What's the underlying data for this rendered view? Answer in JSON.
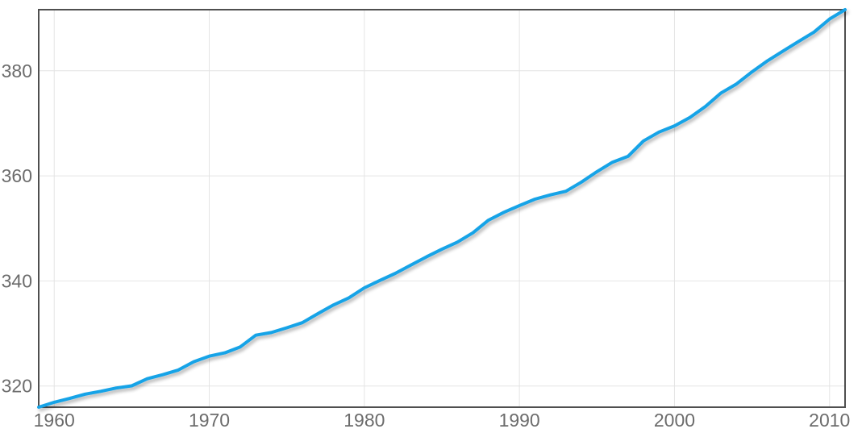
{
  "chart_data": {
    "type": "line",
    "title": "",
    "xlabel": "",
    "ylabel": "",
    "x": [
      1959,
      1960,
      1961,
      1962,
      1963,
      1964,
      1965,
      1966,
      1967,
      1968,
      1969,
      1970,
      1971,
      1972,
      1973,
      1974,
      1975,
      1976,
      1977,
      1978,
      1979,
      1980,
      1981,
      1982,
      1983,
      1984,
      1985,
      1986,
      1987,
      1988,
      1989,
      1990,
      1991,
      1992,
      1993,
      1994,
      1995,
      1996,
      1997,
      1998,
      1999,
      2000,
      2001,
      2002,
      2003,
      2004,
      2005,
      2006,
      2007,
      2008,
      2009,
      2010,
      2011
    ],
    "series": [
      {
        "name": "value",
        "values": [
          315.97,
          316.91,
          317.64,
          318.45,
          318.99,
          319.62,
          320.04,
          321.38,
          322.16,
          323.04,
          324.62,
          325.68,
          326.32,
          327.45,
          329.68,
          330.18,
          331.08,
          332.05,
          333.78,
          335.41,
          336.78,
          338.68,
          340.1,
          341.44,
          343.03,
          344.58,
          346.04,
          347.39,
          349.16,
          351.56,
          353.07,
          354.35,
          355.57,
          356.38,
          357.07,
          358.82,
          360.8,
          362.59,
          363.71,
          366.65,
          368.33,
          369.52,
          371.13,
          373.22,
          375.77,
          377.49,
          379.8,
          381.9,
          383.76,
          385.59,
          387.37,
          389.85,
          391.63
        ]
      }
    ],
    "xlim": [
      1959,
      2011
    ],
    "ylim": [
      315.97,
      391.63
    ],
    "x_ticks": [
      1960,
      1970,
      1980,
      1990,
      2000,
      2010
    ],
    "y_ticks": [
      320,
      340,
      360,
      380
    ],
    "grid": true,
    "legend": "none",
    "colors": {
      "line": "#14a3e7",
      "grid": "#e4e4e4",
      "plot_border": "#4f4f4f",
      "tick_text": "#6c6c6c",
      "background": "#ffffff"
    }
  }
}
